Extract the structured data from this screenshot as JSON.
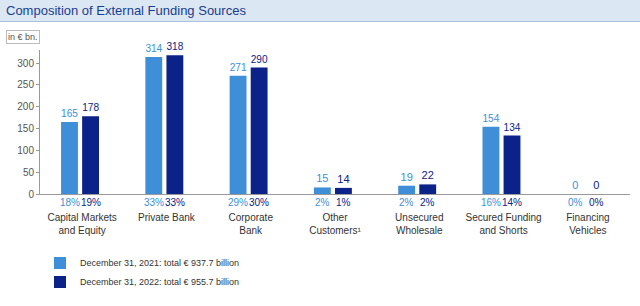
{
  "chart_data": {
    "type": "bar",
    "title": "Composition of External Funding Sources",
    "subtitle": "in € bn.",
    "categories": [
      "Capital Markets and Equity",
      "Private Bank",
      "Corporate Bank",
      "Other Customers¹",
      "Unsecured Wholesale",
      "Secured Funding and Shorts",
      "Financing Vehicles"
    ],
    "series": [
      {
        "name": "December 31, 2021: total € 937.7 billion",
        "color": "#3e8fd8",
        "values": [
          165,
          314,
          271,
          15,
          19,
          154,
          0
        ],
        "share_labels": [
          "18%",
          "33%",
          "29%",
          "2%",
          "2%",
          "16%",
          "0%"
        ]
      },
      {
        "name": "December 31, 2022: total € 955.7 billion",
        "color": "#0b2288",
        "values": [
          178,
          318,
          290,
          14,
          22,
          134,
          0
        ],
        "share_labels": [
          "19%",
          "33%",
          "30%",
          "1%",
          "2%",
          "14%",
          "0%"
        ]
      }
    ],
    "ylim": [
      0,
      330
    ],
    "yticks": [
      0,
      50,
      100,
      150,
      200,
      250,
      300
    ],
    "grid": false,
    "data_labels": true,
    "legend": "bottom left"
  }
}
